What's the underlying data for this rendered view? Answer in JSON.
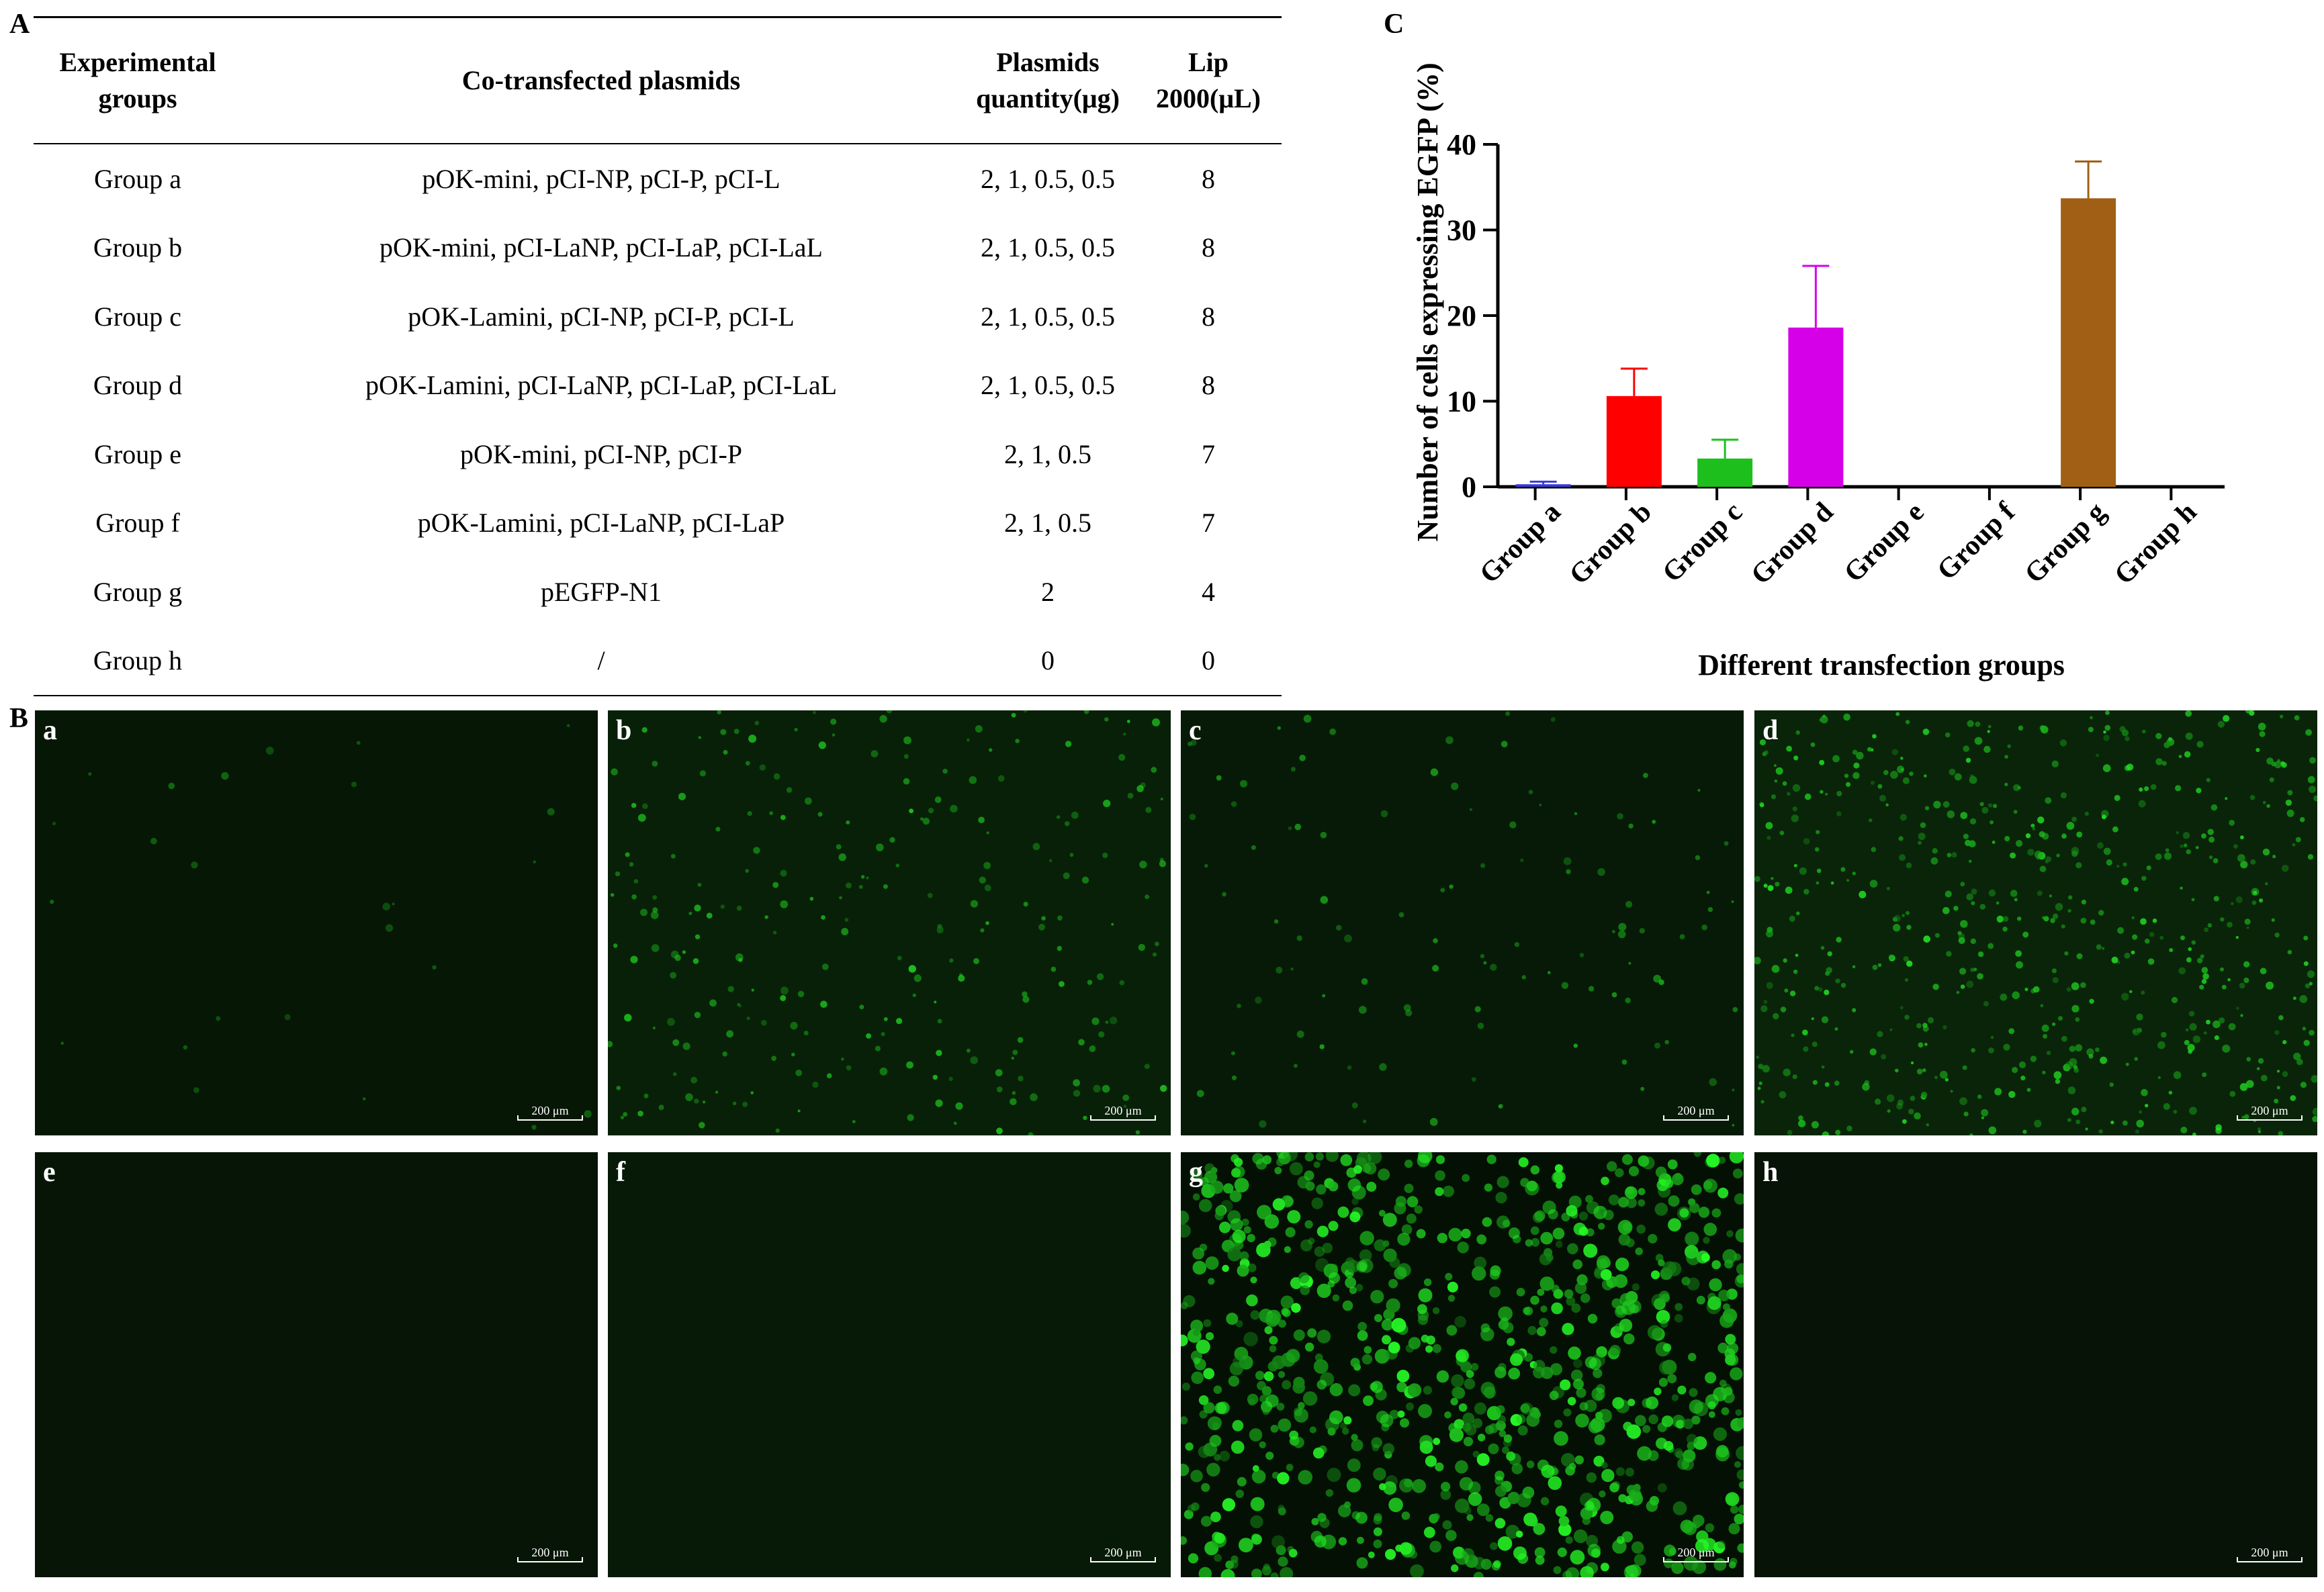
{
  "panel_a": {
    "letter": "A",
    "headers": {
      "groups": [
        "Experimental",
        "groups"
      ],
      "plasmids": [
        "Co-transfected plasmids"
      ],
      "quantity": [
        "Plasmids",
        "quantity(μg)"
      ],
      "lip": [
        "Lip 2000(μL)"
      ]
    },
    "rows": [
      {
        "group": "Group a",
        "plasmids": "pOK-mini, pCI-NP, pCI-P, pCI-L",
        "quantity": "2, 1, 0.5, 0.5",
        "lip": "8"
      },
      {
        "group": "Group b",
        "plasmids": "pOK-mini, pCI-LaNP, pCI-LaP, pCI-LaL",
        "quantity": "2, 1, 0.5, 0.5",
        "lip": "8"
      },
      {
        "group": "Group c",
        "plasmids": "pOK-Lamini, pCI-NP, pCI-P, pCI-L",
        "quantity": "2, 1, 0.5, 0.5",
        "lip": "8"
      },
      {
        "group": "Group d",
        "plasmids": "pOK-Lamini, pCI-LaNP, pCI-LaP, pCI-LaL",
        "quantity": "2, 1, 0.5, 0.5",
        "lip": "8"
      },
      {
        "group": "Group e",
        "plasmids": "pOK-mini, pCI-NP, pCI-P",
        "quantity": "2, 1, 0.5",
        "lip": "7"
      },
      {
        "group": "Group f",
        "plasmids": "pOK-Lamini, pCI-LaNP, pCI-LaP",
        "quantity": "2, 1, 0.5",
        "lip": "7"
      },
      {
        "group": "Group g",
        "plasmids": "pEGFP-N1",
        "quantity": "2",
        "lip": "4"
      },
      {
        "group": "Group h",
        "plasmids": "/",
        "quantity": "0",
        "lip": "0"
      }
    ]
  },
  "panel_b": {
    "letter": "B",
    "scale_label": "200 μm",
    "images": [
      {
        "label": "a",
        "density": 25,
        "bright": 0.35,
        "bg": "#061706"
      },
      {
        "label": "b",
        "density": 260,
        "bright": 0.75,
        "bg": "#082008"
      },
      {
        "label": "c",
        "density": 110,
        "bright": 0.6,
        "bg": "#071a07"
      },
      {
        "label": "d",
        "density": 620,
        "bright": 0.85,
        "bg": "#0a240a"
      },
      {
        "label": "e",
        "density": 0,
        "bright": 0.3,
        "bg": "#061506"
      },
      {
        "label": "f",
        "density": 0,
        "bright": 0.3,
        "bg": "#071a07"
      },
      {
        "label": "g",
        "density": 900,
        "bright": 1.0,
        "bg": "#041004"
      },
      {
        "label": "h",
        "density": 0,
        "bright": 0.3,
        "bg": "#061306"
      }
    ]
  },
  "chart_data": {
    "letter": "C",
    "type": "bar",
    "categories": [
      "Group a",
      "Group b",
      "Group c",
      "Group d",
      "Group e",
      "Group f",
      "Group g",
      "Group h"
    ],
    "values": [
      0.3,
      10.6,
      3.3,
      18.6,
      0,
      0,
      33.7,
      0
    ],
    "errors": [
      0.3,
      3.2,
      2.2,
      7.2,
      0,
      0,
      4.3,
      0
    ],
    "colors": [
      "#3b3bd6",
      "#ff0000",
      "#1dbf1d",
      "#d600e8",
      "#000000",
      "#000000",
      "#a05f14",
      "#000000"
    ],
    "xlabel": "Different transfection groups",
    "ylabel": "Number of cells expressing EGFP (%)",
    "ylim": [
      0,
      40
    ],
    "yticks": [
      0,
      10,
      20,
      30,
      40
    ]
  }
}
